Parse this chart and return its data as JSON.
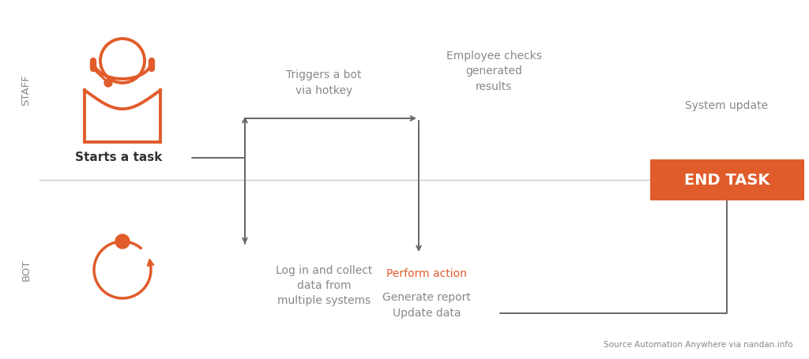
{
  "bg_color": "#ffffff",
  "divider_color": "#cccccc",
  "orange_color": "#e05c2a",
  "gray_text_color": "#888888",
  "arrow_color": "#666666",
  "staff_label": "STAFF",
  "bot_label": "BOT",
  "starts_task_label": "Starts a task",
  "triggers_label": "Triggers a bot\nvia hotkey",
  "employee_label": "Employee checks\ngenerated\nresults",
  "system_update_label": "System update",
  "end_task_label": "END TASK",
  "login_label": "Log in and collect\ndata from\nmultiple systems",
  "perform_label": "Perform action",
  "generate_label": "Generate report\nUpdate data",
  "source_label": "Source Automation Anywhere via nandan.info",
  "figw": 10.24,
  "figh": 4.55,
  "dpi": 100
}
